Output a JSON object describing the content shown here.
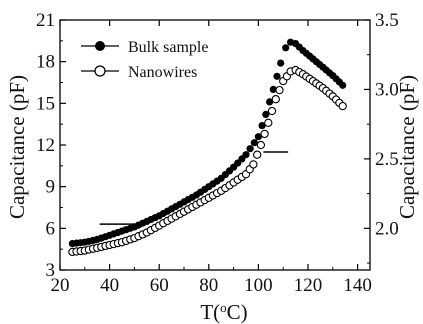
{
  "chart_data": {
    "type": "scatter",
    "title": "",
    "xlabel": "T",
    "xlabel_unit": "(oC)",
    "xlabel_base": "T(",
    "xlabel_sup": "o",
    "xlabel_tail": "C)",
    "ylabel": "Capacitance (pF)",
    "y2label": "Capacitance (pF)",
    "xlim": [
      20,
      145
    ],
    "ylim": [
      3,
      21
    ],
    "y2lim": [
      1.7,
      3.5
    ],
    "xticks": [
      20,
      40,
      60,
      80,
      100,
      120,
      140
    ],
    "yticks": [
      3,
      6,
      9,
      12,
      15,
      18,
      21
    ],
    "y2ticks": [
      2.0,
      2.5,
      3.0,
      3.5
    ],
    "y2ticklabels": [
      "2.0",
      "2.5",
      "3.0",
      "3.5"
    ],
    "grid": false,
    "legend_position": "top-left",
    "series": [
      {
        "name": "Bulk sample",
        "axis": "left",
        "marker": "filled-circle",
        "color": "#000000",
        "points": [
          [
            25,
            4.9
          ],
          [
            30,
            5.0
          ],
          [
            35,
            5.2
          ],
          [
            40,
            5.5
          ],
          [
            45,
            5.8
          ],
          [
            50,
            6.1
          ],
          [
            55,
            6.5
          ],
          [
            60,
            6.9
          ],
          [
            65,
            7.4
          ],
          [
            70,
            7.9
          ],
          [
            75,
            8.4
          ],
          [
            80,
            9.0
          ],
          [
            85,
            9.6
          ],
          [
            90,
            10.4
          ],
          [
            95,
            11.3
          ],
          [
            100,
            12.6
          ],
          [
            103,
            14.2
          ],
          [
            106,
            16.0
          ],
          [
            109,
            17.9
          ],
          [
            111,
            19.0
          ],
          [
            113,
            19.4
          ],
          [
            115,
            19.3
          ],
          [
            118,
            18.8
          ],
          [
            122,
            18.2
          ],
          [
            126,
            17.6
          ],
          [
            130,
            17.0
          ],
          [
            134,
            16.3
          ]
        ]
      },
      {
        "name": "Nanowires",
        "axis": "right",
        "marker": "open-circle",
        "color": "#000000",
        "points": [
          [
            25,
            1.83
          ],
          [
            30,
            1.84
          ],
          [
            35,
            1.86
          ],
          [
            40,
            1.88
          ],
          [
            45,
            1.9
          ],
          [
            50,
            1.93
          ],
          [
            55,
            1.97
          ],
          [
            60,
            2.02
          ],
          [
            65,
            2.07
          ],
          [
            70,
            2.12
          ],
          [
            75,
            2.17
          ],
          [
            80,
            2.22
          ],
          [
            85,
            2.27
          ],
          [
            90,
            2.33
          ],
          [
            95,
            2.39
          ],
          [
            98,
            2.46
          ],
          [
            101,
            2.6
          ],
          [
            104,
            2.76
          ],
          [
            107,
            2.93
          ],
          [
            110,
            3.06
          ],
          [
            113,
            3.13
          ],
          [
            115,
            3.14
          ],
          [
            118,
            3.11
          ],
          [
            122,
            3.06
          ],
          [
            126,
            3.01
          ],
          [
            130,
            2.95
          ],
          [
            134,
            2.88
          ]
        ]
      }
    ],
    "indicator_arrows": [
      {
        "series": "Bulk sample",
        "axis": "left",
        "x1": 36,
        "x2": 50,
        "y": 6.3
      },
      {
        "series": "Nanowires",
        "axis": "right",
        "x1": 102,
        "x2": 112,
        "y": 2.55
      }
    ]
  }
}
